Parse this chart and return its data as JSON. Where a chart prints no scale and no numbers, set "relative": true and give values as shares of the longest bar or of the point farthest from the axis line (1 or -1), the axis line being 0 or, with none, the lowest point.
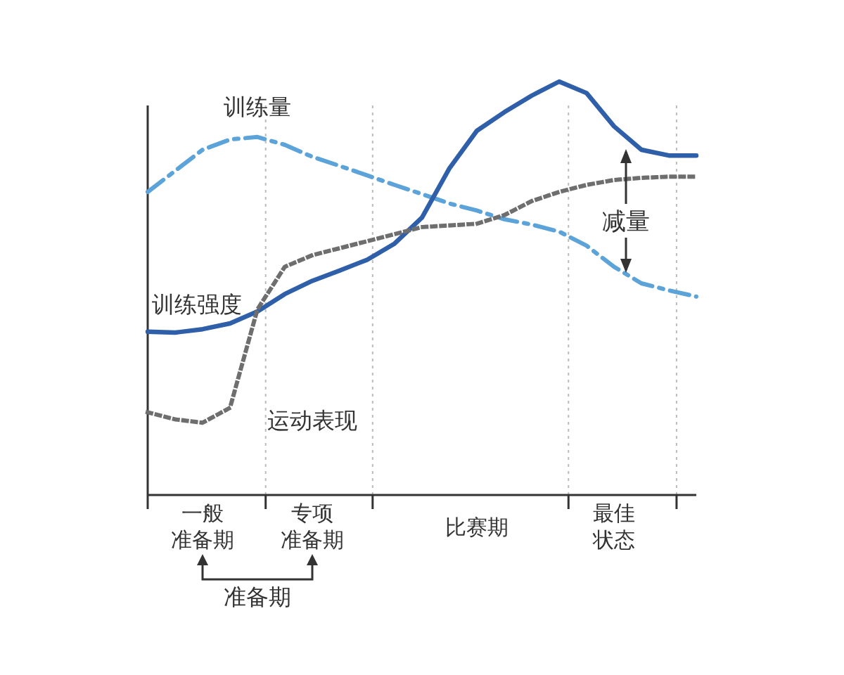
{
  "chart_data": {
    "type": "line",
    "relative": true,
    "legend": false,
    "grid": "x",
    "categories": [
      null,
      null,
      "一般准备期",
      null,
      null,
      null,
      "专项准备期",
      null,
      null,
      null,
      null,
      null,
      "比赛期",
      null,
      null,
      null,
      null,
      "最佳状态",
      null,
      null,
      null
    ],
    "series": [
      {
        "name": "训练量",
        "color": "#5ba3d8",
        "line_style": "dashed",
        "values": [
          0.733,
          0.784,
          0.835,
          0.86,
          0.866,
          0.847,
          0.818,
          0.796,
          0.773,
          0.75,
          0.728,
          0.705,
          0.688,
          0.667,
          0.654,
          0.637,
          0.603,
          0.552,
          0.512,
          0.495,
          0.48
        ]
      },
      {
        "name": "训练强度",
        "color": "#2e5fa8",
        "line_style": "solid",
        "values": [
          0.395,
          0.393,
          0.401,
          0.415,
          0.444,
          0.486,
          0.518,
          0.543,
          0.569,
          0.608,
          0.671,
          0.79,
          0.881,
          0.926,
          0.966,
          1,
          0.972,
          0.892,
          0.835,
          0.821,
          0.821
        ]
      },
      {
        "name": "运动表现",
        "color": "#6e6e6e",
        "line_style": "dotted",
        "values": [
          0.2,
          0.183,
          0.175,
          0.211,
          0.449,
          0.552,
          0.58,
          0.597,
          0.614,
          0.631,
          0.648,
          0.652,
          0.656,
          0.677,
          0.711,
          0.733,
          0.75,
          0.762,
          0.767,
          0.77,
          0.77
        ]
      }
    ],
    "annotations": [
      "减量",
      "准备期"
    ]
  }
}
